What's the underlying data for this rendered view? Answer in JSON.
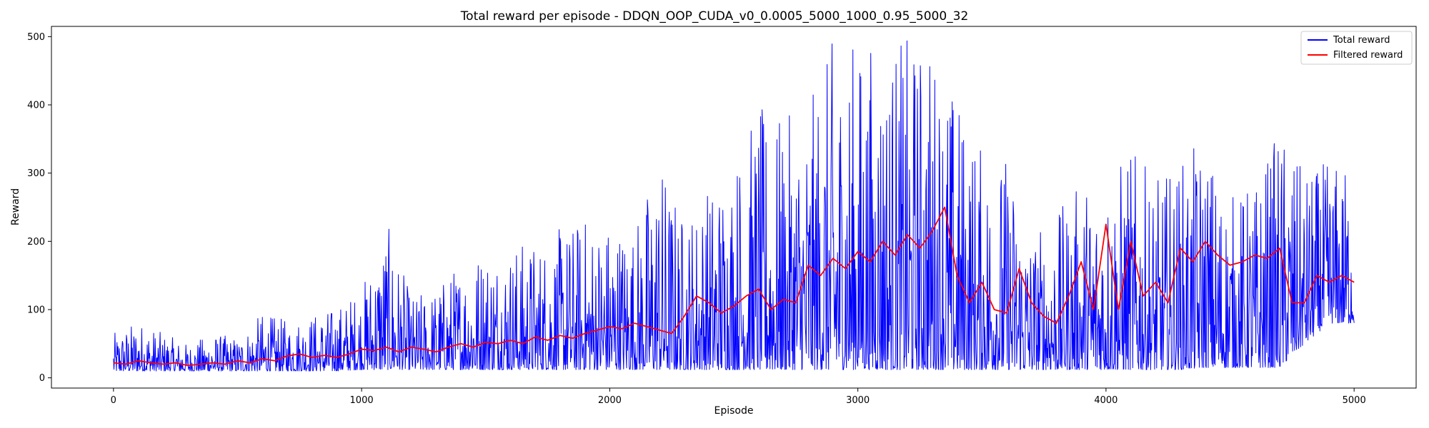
{
  "chart_data": {
    "type": "line",
    "title": "Total reward per episode - DDQN_OOP_CUDA_v0_0.0005_5000_1000_0.95_5000_32",
    "xlabel": "Episode",
    "ylabel": "Reward",
    "xlim": [
      -250,
      5250
    ],
    "ylim": [
      -15,
      515
    ],
    "xticks": [
      0,
      1000,
      2000,
      3000,
      4000,
      5000
    ],
    "yticks": [
      0,
      100,
      200,
      300,
      400,
      500
    ],
    "legend_position": "top-right",
    "grid": false,
    "series": [
      {
        "name": "Total reward",
        "color": "#0000ff",
        "envelope_episodes": [
          0,
          100,
          200,
          300,
          400,
          500,
          600,
          700,
          800,
          900,
          1000,
          1100,
          1200,
          1300,
          1400,
          1500,
          1600,
          1700,
          1800,
          1900,
          2000,
          2100,
          2200,
          2300,
          2400,
          2500,
          2600,
          2700,
          2800,
          2900,
          3000,
          3100,
          3200,
          3300,
          3400,
          3500,
          3600,
          3700,
          3800,
          3900,
          4000,
          4100,
          4200,
          4300,
          4400,
          4500,
          4600,
          4700,
          4800,
          4900,
          5000
        ],
        "envelope_min": [
          10,
          10,
          10,
          10,
          10,
          10,
          10,
          10,
          10,
          10,
          12,
          12,
          12,
          12,
          12,
          12,
          12,
          12,
          12,
          12,
          12,
          12,
          12,
          12,
          12,
          12,
          12,
          12,
          12,
          12,
          12,
          12,
          12,
          12,
          12,
          12,
          12,
          12,
          12,
          12,
          12,
          12,
          12,
          12,
          15,
          15,
          15,
          15,
          50,
          80,
          80
        ],
        "envelope_max": [
          65,
          85,
          65,
          50,
          65,
          60,
          95,
          85,
          95,
          105,
          135,
          230,
          120,
          135,
          175,
          200,
          200,
          205,
          220,
          240,
          235,
          230,
          330,
          240,
          290,
          330,
          400,
          380,
          400,
          500,
          500,
          500,
          500,
          500,
          420,
          340,
          330,
          220,
          240,
          290,
          300,
          340,
          290,
          320,
          350,
          270,
          290,
          370,
          300,
          320,
          310
        ]
      },
      {
        "name": "Filtered reward",
        "color": "#ff0000",
        "x": [
          0,
          50,
          100,
          150,
          200,
          250,
          300,
          350,
          400,
          450,
          500,
          550,
          600,
          650,
          700,
          750,
          800,
          850,
          900,
          950,
          1000,
          1050,
          1100,
          1150,
          1200,
          1250,
          1300,
          1350,
          1400,
          1450,
          1500,
          1550,
          1600,
          1650,
          1700,
          1750,
          1800,
          1850,
          1900,
          1950,
          2000,
          2050,
          2100,
          2150,
          2200,
          2250,
          2300,
          2350,
          2400,
          2450,
          2500,
          2550,
          2600,
          2650,
          2700,
          2750,
          2800,
          2850,
          2900,
          2950,
          3000,
          3050,
          3100,
          3150,
          3200,
          3250,
          3300,
          3350,
          3400,
          3450,
          3500,
          3550,
          3600,
          3650,
          3700,
          3750,
          3800,
          3850,
          3900,
          3950,
          4000,
          4050,
          4100,
          4150,
          4200,
          4250,
          4300,
          4350,
          4400,
          4450,
          4500,
          4550,
          4600,
          4650,
          4700,
          4750,
          4800,
          4850,
          4900,
          4950,
          5000
        ],
        "y": [
          22,
          20,
          25,
          22,
          20,
          22,
          18,
          20,
          22,
          20,
          25,
          22,
          28,
          25,
          32,
          35,
          30,
          33,
          30,
          35,
          42,
          40,
          45,
          38,
          45,
          42,
          38,
          45,
          50,
          45,
          52,
          50,
          55,
          50,
          60,
          55,
          62,
          58,
          65,
          70,
          75,
          72,
          80,
          75,
          70,
          65,
          90,
          120,
          110,
          95,
          105,
          120,
          130,
          100,
          115,
          110,
          165,
          150,
          175,
          160,
          185,
          170,
          200,
          180,
          210,
          190,
          215,
          250,
          150,
          110,
          140,
          100,
          95,
          160,
          110,
          90,
          80,
          120,
          170,
          100,
          225,
          100,
          200,
          120,
          140,
          110,
          190,
          170,
          200,
          180,
          165,
          170,
          180,
          175,
          190,
          110,
          110,
          150,
          140,
          150,
          140
        ]
      }
    ]
  }
}
